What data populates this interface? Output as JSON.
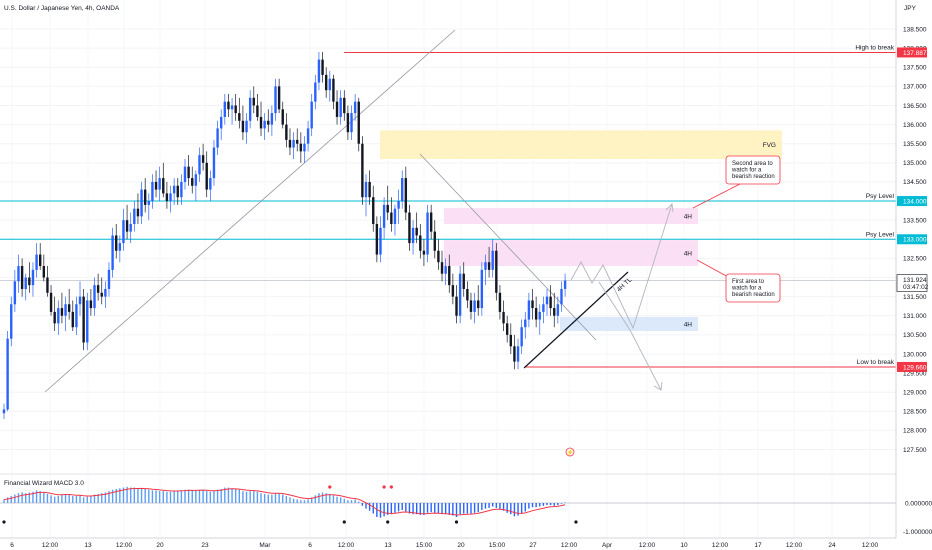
{
  "chart_data": {
    "type": "candlestick",
    "title": "U.S. Dollar / Japanese Yen, 4h, OANDA",
    "currency": "JPY",
    "ylim": [
      127.2,
      139.05
    ],
    "y_ticks": [
      138.5,
      138.0,
      137.5,
      137.0,
      136.5,
      136.0,
      135.5,
      135.0,
      134.5,
      134.0,
      133.5,
      133.0,
      132.5,
      132.0,
      131.5,
      131.0,
      130.5,
      130.0,
      129.5,
      129.0,
      128.5,
      128.0,
      127.5
    ],
    "x_ticks": [
      "6",
      "12:00",
      "13",
      "12:00",
      "20",
      "23",
      "Mar",
      "6",
      "12:00",
      "13",
      "15:00",
      "20",
      "15:00",
      "27",
      "12:00",
      "Apr",
      "12:00",
      "10",
      "12:00",
      "17",
      "12:00",
      "24",
      "12:00"
    ],
    "last_price": {
      "value": "131.924",
      "countdown": "03:47:02",
      "prev_close": 131.92
    },
    "price_tags": [
      {
        "value": "137.887",
        "level": 137.887,
        "color": "#f23645"
      },
      {
        "value": "134.000",
        "level": 134.0,
        "color": "#00bcd4"
      },
      {
        "value": "133.000",
        "level": 133.0,
        "color": "#00bcd4"
      },
      {
        "value": "129.660",
        "level": 129.66,
        "color": "#f23645"
      }
    ],
    "levels": [
      {
        "name": "High to break",
        "value": 137.887,
        "color": "#f23645"
      },
      {
        "name": "Psy Level",
        "value": 134.0,
        "color": "#00bcd4"
      },
      {
        "name": "Psy Level",
        "value": 133.0,
        "color": "#00bcd4"
      },
      {
        "name": "Low to break",
        "value": 129.66,
        "color": "#f23645"
      }
    ],
    "zones": [
      {
        "label": "FVG",
        "top": 135.85,
        "bottom": 135.1,
        "color": "#fff3c4"
      },
      {
        "label": "4H",
        "top": 133.82,
        "bottom": 133.4,
        "color": "#fbe0f5"
      },
      {
        "label": "4H",
        "top": 132.98,
        "bottom": 132.3,
        "color": "#fbe0f5"
      },
      {
        "label": "4H",
        "top": 130.97,
        "bottom": 130.6,
        "color": "#dce9fb"
      }
    ],
    "trendline_label": "4H TL",
    "callouts": [
      {
        "text": [
          "Second area to",
          "watch for a",
          "bearish reaction"
        ]
      },
      {
        "text": [
          "First area to",
          "watch for a",
          "bearish reaction"
        ]
      }
    ],
    "candles_ohlc": [
      [
        128.45,
        128.7,
        128.3,
        128.55
      ],
      [
        128.55,
        130.6,
        128.5,
        130.4
      ],
      [
        130.4,
        131.5,
        130.2,
        131.3
      ],
      [
        131.3,
        132.2,
        131.1,
        131.9
      ],
      [
        131.9,
        132.6,
        131.6,
        132.3
      ],
      [
        132.3,
        132.5,
        131.5,
        131.7
      ],
      [
        131.7,
        132.1,
        131.4,
        132.0
      ],
      [
        132.0,
        132.4,
        131.6,
        131.8
      ],
      [
        131.8,
        132.4,
        131.5,
        132.2
      ],
      [
        132.2,
        132.9,
        132.0,
        132.6
      ],
      [
        132.6,
        132.9,
        132.2,
        132.3
      ],
      [
        132.3,
        132.6,
        131.9,
        132.0
      ],
      [
        132.0,
        132.3,
        131.5,
        131.6
      ],
      [
        131.6,
        131.8,
        131.0,
        131.1
      ],
      [
        131.1,
        131.5,
        130.6,
        130.8
      ],
      [
        130.8,
        131.4,
        130.5,
        131.2
      ],
      [
        131.2,
        131.6,
        130.8,
        131.0
      ],
      [
        131.0,
        131.5,
        130.6,
        131.3
      ],
      [
        131.3,
        131.7,
        130.9,
        131.1
      ],
      [
        131.1,
        131.4,
        130.6,
        130.7
      ],
      [
        130.7,
        131.5,
        130.5,
        131.3
      ],
      [
        131.3,
        131.9,
        131.0,
        131.5
      ],
      [
        131.5,
        131.7,
        130.1,
        130.3
      ],
      [
        130.3,
        131.6,
        130.1,
        131.4
      ],
      [
        131.4,
        131.7,
        131.0,
        131.2
      ],
      [
        131.2,
        132.0,
        131.0,
        131.8
      ],
      [
        131.8,
        132.1,
        131.4,
        131.6
      ],
      [
        131.6,
        132.0,
        131.3,
        131.5
      ],
      [
        131.5,
        131.9,
        131.2,
        131.7
      ],
      [
        131.7,
        132.4,
        131.5,
        132.2
      ],
      [
        132.2,
        133.3,
        132.0,
        133.1
      ],
      [
        133.1,
        133.4,
        132.5,
        132.7
      ],
      [
        132.7,
        133.1,
        132.4,
        132.9
      ],
      [
        132.9,
        133.8,
        132.7,
        133.5
      ],
      [
        133.5,
        133.9,
        133.0,
        133.2
      ],
      [
        133.2,
        133.7,
        132.9,
        133.4
      ],
      [
        133.4,
        134.0,
        133.2,
        133.8
      ],
      [
        133.8,
        134.2,
        133.4,
        133.6
      ],
      [
        133.6,
        134.5,
        133.4,
        134.3
      ],
      [
        134.3,
        134.6,
        133.7,
        133.9
      ],
      [
        133.9,
        134.2,
        133.5,
        134.0
      ],
      [
        134.0,
        134.7,
        133.8,
        134.5
      ],
      [
        134.5,
        134.8,
        134.1,
        134.3
      ],
      [
        134.3,
        134.9,
        134.0,
        134.6
      ],
      [
        134.6,
        135.0,
        134.1,
        134.2
      ],
      [
        134.2,
        134.5,
        133.8,
        134.0
      ],
      [
        134.0,
        134.4,
        133.7,
        134.2
      ],
      [
        134.2,
        134.6,
        133.9,
        134.4
      ],
      [
        134.4,
        134.6,
        133.9,
        134.1
      ],
      [
        134.1,
        134.7,
        133.9,
        134.5
      ],
      [
        134.5,
        135.1,
        134.3,
        134.9
      ],
      [
        134.9,
        135.2,
        134.4,
        134.6
      ],
      [
        134.6,
        134.9,
        134.2,
        134.4
      ],
      [
        134.4,
        134.8,
        134.0,
        134.7
      ],
      [
        134.7,
        135.4,
        134.5,
        135.2
      ],
      [
        135.2,
        135.5,
        134.8,
        135.0
      ],
      [
        135.0,
        135.3,
        134.1,
        134.3
      ],
      [
        134.3,
        134.8,
        134.0,
        134.6
      ],
      [
        134.6,
        135.6,
        134.4,
        135.4
      ],
      [
        135.4,
        136.1,
        135.2,
        135.9
      ],
      [
        135.9,
        136.4,
        135.6,
        136.2
      ],
      [
        136.2,
        136.8,
        136.0,
        136.6
      ],
      [
        136.6,
        136.8,
        136.2,
        136.4
      ],
      [
        136.4,
        136.7,
        136.0,
        136.5
      ],
      [
        136.5,
        136.8,
        136.1,
        136.3
      ],
      [
        136.3,
        136.7,
        135.9,
        136.1
      ],
      [
        136.1,
        136.5,
        135.6,
        135.8
      ],
      [
        135.8,
        136.3,
        135.5,
        136.1
      ],
      [
        136.1,
        136.9,
        135.9,
        136.7
      ],
      [
        136.7,
        137.0,
        136.3,
        136.5
      ],
      [
        136.5,
        136.8,
        136.1,
        136.2
      ],
      [
        136.2,
        136.6,
        135.7,
        135.9
      ],
      [
        135.9,
        136.3,
        135.6,
        136.1
      ],
      [
        136.1,
        136.4,
        135.8,
        136.0
      ],
      [
        136.0,
        136.5,
        135.7,
        136.3
      ],
      [
        136.3,
        137.2,
        136.1,
        137.0
      ],
      [
        137.0,
        137.2,
        136.3,
        136.4
      ],
      [
        136.4,
        136.6,
        135.9,
        136.0
      ],
      [
        136.0,
        136.3,
        135.4,
        135.6
      ],
      [
        135.6,
        135.9,
        135.2,
        135.4
      ],
      [
        135.4,
        135.8,
        135.1,
        135.6
      ],
      [
        135.6,
        135.9,
        135.3,
        135.5
      ],
      [
        135.5,
        135.8,
        135.0,
        135.3
      ],
      [
        135.3,
        135.7,
        135.0,
        135.5
      ],
      [
        135.5,
        136.1,
        135.3,
        135.9
      ],
      [
        135.9,
        136.8,
        135.7,
        136.6
      ],
      [
        136.6,
        137.3,
        136.4,
        137.1
      ],
      [
        137.1,
        137.9,
        136.9,
        137.7
      ],
      [
        137.7,
        137.9,
        137.1,
        137.3
      ],
      [
        137.3,
        137.5,
        136.7,
        136.9
      ],
      [
        136.9,
        137.4,
        136.6,
        137.2
      ],
      [
        137.2,
        137.3,
        136.4,
        136.6
      ],
      [
        136.6,
        136.9,
        136.0,
        136.2
      ],
      [
        136.2,
        136.9,
        136.0,
        136.7
      ],
      [
        136.7,
        136.9,
        136.1,
        136.3
      ],
      [
        136.3,
        136.5,
        135.6,
        135.8
      ],
      [
        135.8,
        136.5,
        135.6,
        136.3
      ],
      [
        136.3,
        136.8,
        136.1,
        136.6
      ],
      [
        136.6,
        136.7,
        135.3,
        135.5
      ],
      [
        135.5,
        135.7,
        133.9,
        134.1
      ],
      [
        134.1,
        134.7,
        133.6,
        134.5
      ],
      [
        134.5,
        134.8,
        133.9,
        134.1
      ],
      [
        134.1,
        134.4,
        133.2,
        133.4
      ],
      [
        133.4,
        133.6,
        132.4,
        132.6
      ],
      [
        132.6,
        133.6,
        132.4,
        133.3
      ],
      [
        133.3,
        134.1,
        133.0,
        133.9
      ],
      [
        133.9,
        134.4,
        133.5,
        133.7
      ],
      [
        133.7,
        134.1,
        133.2,
        133.4
      ],
      [
        133.4,
        133.9,
        133.1,
        133.8
      ],
      [
        133.8,
        134.3,
        133.4,
        134.0
      ],
      [
        134.0,
        134.8,
        133.8,
        134.6
      ],
      [
        134.6,
        134.9,
        133.5,
        133.7
      ],
      [
        133.7,
        133.9,
        132.7,
        132.9
      ],
      [
        132.9,
        133.5,
        132.6,
        133.3
      ],
      [
        133.3,
        133.7,
        132.9,
        133.1
      ],
      [
        133.1,
        133.4,
        132.5,
        132.7
      ],
      [
        132.7,
        133.0,
        132.3,
        132.6
      ],
      [
        132.6,
        133.9,
        132.4,
        133.7
      ],
      [
        133.7,
        133.9,
        133.0,
        133.2
      ],
      [
        133.2,
        133.5,
        132.5,
        132.7
      ],
      [
        132.7,
        133.0,
        132.2,
        132.4
      ],
      [
        132.4,
        132.7,
        131.9,
        132.1
      ],
      [
        132.1,
        132.5,
        131.8,
        132.3
      ],
      [
        132.3,
        132.6,
        131.6,
        131.8
      ],
      [
        131.8,
        132.1,
        131.3,
        131.5
      ],
      [
        131.5,
        131.8,
        130.8,
        131.0
      ],
      [
        131.0,
        132.3,
        130.8,
        132.1
      ],
      [
        132.1,
        132.4,
        131.5,
        131.7
      ],
      [
        131.7,
        131.9,
        131.2,
        131.4
      ],
      [
        131.4,
        131.6,
        130.9,
        131.1
      ],
      [
        131.1,
        131.6,
        130.8,
        131.4
      ],
      [
        131.4,
        131.8,
        131.0,
        131.2
      ],
      [
        131.2,
        132.4,
        131.0,
        132.2
      ],
      [
        132.2,
        132.6,
        131.8,
        132.4
      ],
      [
        132.4,
        132.8,
        132.0,
        132.2
      ],
      [
        132.2,
        133.0,
        132.0,
        132.7
      ],
      [
        132.7,
        132.9,
        131.4,
        131.6
      ],
      [
        131.6,
        131.8,
        130.9,
        131.1
      ],
      [
        131.1,
        131.4,
        130.6,
        130.8
      ],
      [
        130.8,
        131.0,
        130.3,
        130.5
      ],
      [
        130.5,
        130.8,
        130.0,
        130.2
      ],
      [
        130.2,
        130.5,
        129.6,
        129.8
      ],
      [
        129.8,
        130.4,
        129.6,
        130.2
      ],
      [
        130.2,
        130.9,
        130.0,
        130.7
      ],
      [
        130.7,
        131.1,
        130.4,
        130.9
      ],
      [
        130.9,
        131.6,
        130.7,
        131.4
      ],
      [
        131.4,
        131.7,
        130.9,
        131.2
      ],
      [
        131.2,
        131.5,
        130.7,
        130.9
      ],
      [
        130.9,
        131.3,
        130.5,
        131.1
      ],
      [
        131.1,
        131.5,
        130.8,
        131.3
      ],
      [
        131.3,
        131.7,
        131.0,
        131.5
      ],
      [
        131.5,
        131.8,
        131.0,
        131.2
      ],
      [
        131.2,
        131.6,
        130.7,
        131.0
      ],
      [
        131.0,
        131.5,
        130.8,
        131.3
      ],
      [
        131.3,
        131.9,
        131.1,
        131.7
      ],
      [
        131.7,
        132.1,
        131.5,
        131.92
      ]
    ],
    "macd_hist": [
      0.05,
      0.08,
      0.1,
      0.12,
      0.14,
      0.15,
      0.14,
      0.15,
      0.16,
      0.18,
      0.17,
      0.15,
      0.13,
      0.11,
      0.09,
      0.1,
      0.12,
      0.13,
      0.12,
      0.1,
      0.1,
      0.11,
      0.08,
      0.09,
      0.1,
      0.12,
      0.13,
      0.14,
      0.15,
      0.17,
      0.19,
      0.2,
      0.21,
      0.22,
      0.23,
      0.22,
      0.22,
      0.21,
      0.21,
      0.2,
      0.19,
      0.18,
      0.18,
      0.17,
      0.17,
      0.16,
      0.16,
      0.17,
      0.17,
      0.18,
      0.19,
      0.19,
      0.18,
      0.18,
      0.19,
      0.19,
      0.17,
      0.16,
      0.17,
      0.19,
      0.2,
      0.22,
      0.22,
      0.21,
      0.2,
      0.19,
      0.17,
      0.16,
      0.17,
      0.17,
      0.16,
      0.14,
      0.13,
      0.12,
      0.12,
      0.14,
      0.14,
      0.12,
      0.1,
      0.08,
      0.06,
      0.05,
      0.04,
      0.04,
      0.05,
      0.08,
      0.11,
      0.14,
      0.15,
      0.14,
      0.13,
      0.11,
      0.09,
      0.08,
      0.06,
      0.04,
      0.04,
      0.05,
      0.02,
      -0.04,
      -0.08,
      -0.11,
      -0.15,
      -0.2,
      -0.21,
      -0.19,
      -0.17,
      -0.16,
      -0.14,
      -0.12,
      -0.1,
      -0.12,
      -0.15,
      -0.16,
      -0.16,
      -0.17,
      -0.17,
      -0.14,
      -0.13,
      -0.14,
      -0.15,
      -0.16,
      -0.16,
      -0.17,
      -0.18,
      -0.2,
      -0.16,
      -0.15,
      -0.15,
      -0.15,
      -0.14,
      -0.13,
      -0.1,
      -0.08,
      -0.07,
      -0.05,
      -0.07,
      -0.09,
      -0.11,
      -0.14,
      -0.16,
      -0.19,
      -0.18,
      -0.15,
      -0.12,
      -0.08,
      -0.06,
      -0.06,
      -0.05,
      -0.04,
      -0.03,
      -0.03,
      -0.04,
      -0.03,
      -0.01,
      0.01
    ],
    "macd_panel": {
      "title": "Financial Wizard MACD 3.0",
      "zero_label": "0.000000",
      "neg_label": "-1.000000",
      "red_dot_bars": [
        90,
        105,
        107
      ],
      "black_dot_bars": [
        0,
        94,
        106,
        125,
        158
      ]
    }
  }
}
